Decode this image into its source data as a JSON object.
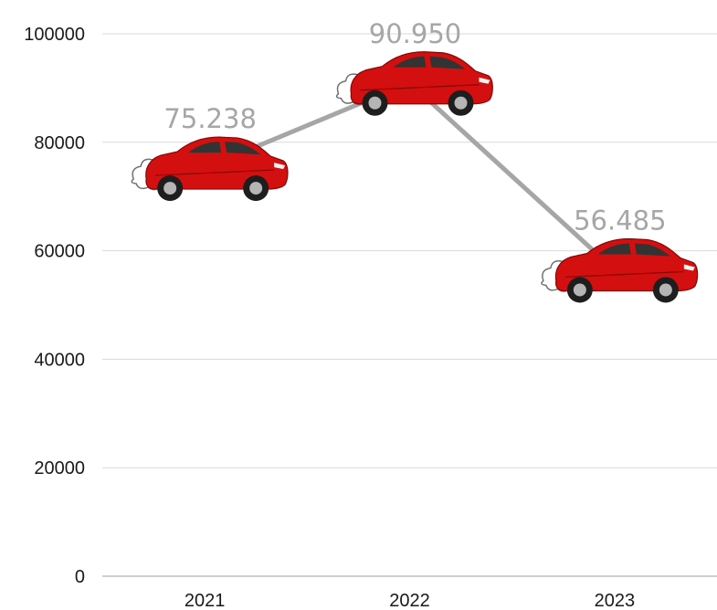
{
  "chart_data": {
    "type": "line",
    "categories": [
      "2021",
      "2022",
      "2023"
    ],
    "values": [
      75238,
      90950,
      56485
    ],
    "data_labels": [
      "75.238",
      "90.950",
      "56.485"
    ],
    "y_ticks": [
      "0",
      "20000",
      "40000",
      "60000",
      "80000",
      "100000"
    ],
    "ylim": [
      0,
      100000
    ],
    "grid": true,
    "legend": "none",
    "marker": "red-car-with-exhaust-cloud-icon",
    "colors": {
      "line": "#a6a6a6",
      "grid": "#d9d9d9",
      "axis": "#bfbfbf",
      "label": "#a6a6a6",
      "tick_text": "#1a1a1a",
      "car_body": "#d40f0f"
    }
  }
}
